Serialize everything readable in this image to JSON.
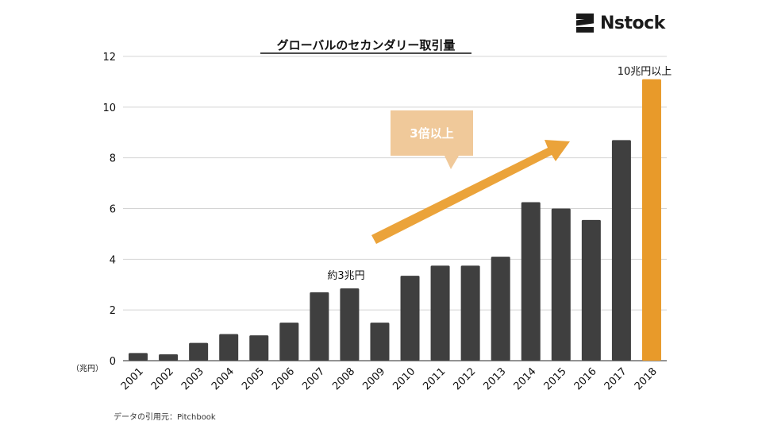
{
  "brand": {
    "name": "Nstock"
  },
  "colors": {
    "bar": "#3f3f3f",
    "highlight": "#e89a2a",
    "arrow": "#eba33a",
    "callout": "#f0c99a",
    "grid": "#d4d4d4"
  },
  "chart_data": {
    "type": "bar",
    "title": "グローバルのセカンダリー取引量",
    "ylabel": "（兆円）",
    "xlabel": "",
    "ylim": [
      0,
      12
    ],
    "yticks": [
      0,
      2,
      4,
      6,
      8,
      10,
      12
    ],
    "grid": true,
    "categories": [
      "2001",
      "2002",
      "2003",
      "2004",
      "2005",
      "2006",
      "2007",
      "2008",
      "2009",
      "2010",
      "2011",
      "2012",
      "2013",
      "2014",
      "2015",
      "2016",
      "2017",
      "2018"
    ],
    "values": [
      0.3,
      0.25,
      0.7,
      1.05,
      1.0,
      1.5,
      2.7,
      2.85,
      1.5,
      3.35,
      3.75,
      3.75,
      4.1,
      6.25,
      6.0,
      5.55,
      8.7,
      11.1
    ],
    "highlight_category": "2018",
    "annotations": {
      "label_2008": "約3兆円",
      "label_2018": "10兆円以上",
      "callout": "3倍以上"
    }
  },
  "source_note": "データの引用元：Pitchbook"
}
